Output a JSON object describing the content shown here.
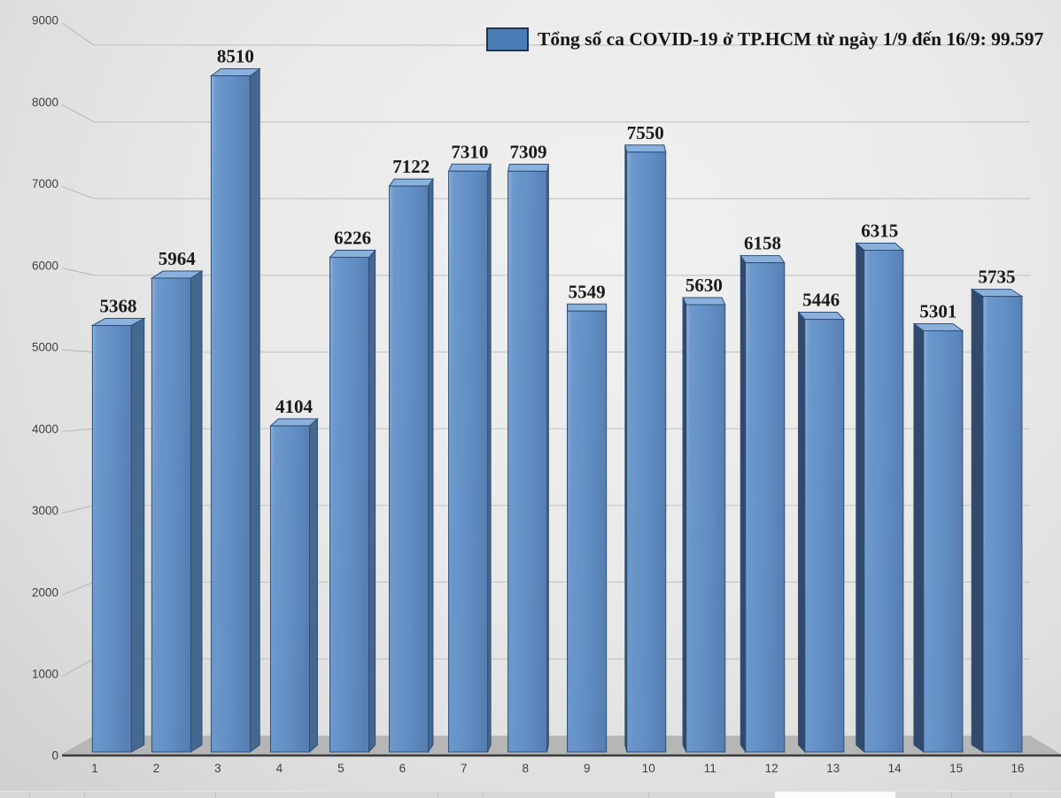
{
  "legend": {
    "label": "Tổng số ca COVID-19 ở TP.HCM từ ngày 1/9 đến 16/9: 99.597",
    "swatch_color": "#4c7eb6",
    "swatch_border": "#16365c"
  },
  "chart_data": {
    "type": "bar",
    "style": "3d-column",
    "title": "",
    "xlabel": "",
    "ylabel": "",
    "categories": [
      "1",
      "2",
      "3",
      "4",
      "5",
      "6",
      "7",
      "8",
      "9",
      "10",
      "11",
      "12",
      "13",
      "14",
      "15",
      "16"
    ],
    "values": [
      5368,
      5964,
      8510,
      4104,
      6226,
      7122,
      7310,
      7309,
      5549,
      7550,
      5630,
      6158,
      5446,
      6315,
      5301,
      5735
    ],
    "total_label": "99.597",
    "ylim": [
      0,
      9000
    ],
    "ytick_interval": 1000,
    "grid": true,
    "legend_position": "top-right",
    "colors": {
      "bar_front_light": "#9dbbdf",
      "bar_front_mid": "#6290c6",
      "bar_front_dark": "#587fb3",
      "bar_top": "#8ab0dc",
      "bar_side_right": "#446890",
      "bar_side_left": "#32496e",
      "bar_edge": "#2e4e77",
      "value_label": "#1a1a1a",
      "tick_label": "#3f3f3f",
      "gridline": "#c7c7c7",
      "floor": "#b6b6b6",
      "axis_line": "#3d3d3d"
    }
  }
}
